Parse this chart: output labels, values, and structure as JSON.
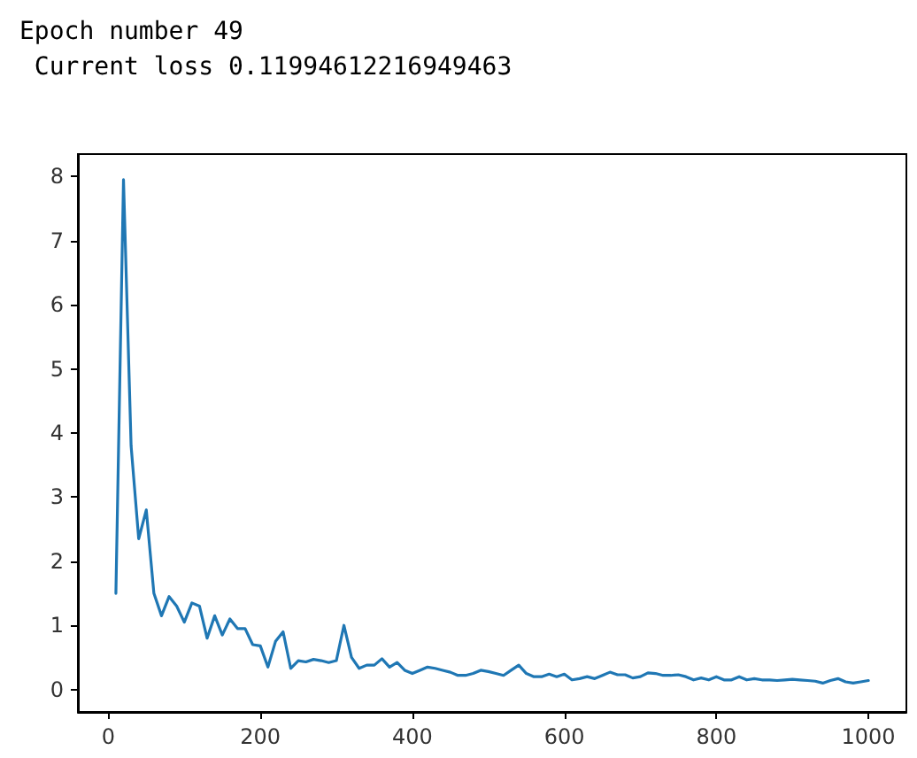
{
  "chart_data": {
    "type": "line",
    "title": "Epoch number 49",
    "subtitle": " Current loss 0.11994612216949463",
    "x": [
      10,
      20,
      30,
      40,
      50,
      60,
      70,
      80,
      90,
      100,
      110,
      120,
      130,
      140,
      150,
      160,
      170,
      180,
      190,
      200,
      210,
      220,
      230,
      240,
      250,
      260,
      270,
      280,
      290,
      300,
      310,
      320,
      330,
      340,
      350,
      360,
      370,
      380,
      390,
      400,
      410,
      420,
      430,
      440,
      450,
      460,
      470,
      480,
      490,
      500,
      510,
      520,
      530,
      540,
      550,
      560,
      570,
      580,
      590,
      600,
      610,
      620,
      630,
      640,
      650,
      660,
      670,
      680,
      690,
      700,
      710,
      720,
      730,
      740,
      750,
      760,
      770,
      780,
      790,
      800,
      810,
      820,
      830,
      840,
      850,
      860,
      870,
      880,
      890,
      900,
      910,
      920,
      930,
      940,
      950,
      960,
      970,
      980,
      990,
      1000
    ],
    "series": [
      {
        "color": "#1f77b4",
        "values": [
          1.5,
          7.95,
          3.8,
          2.35,
          2.8,
          1.5,
          1.15,
          1.45,
          1.3,
          1.05,
          1.35,
          1.3,
          0.8,
          1.15,
          0.85,
          1.1,
          0.95,
          0.95,
          0.7,
          0.68,
          0.35,
          0.75,
          0.9,
          0.33,
          0.45,
          0.43,
          0.47,
          0.45,
          0.42,
          0.45,
          1.0,
          0.5,
          0.33,
          0.38,
          0.38,
          0.48,
          0.35,
          0.42,
          0.3,
          0.25,
          0.3,
          0.35,
          0.33,
          0.3,
          0.27,
          0.22,
          0.22,
          0.25,
          0.3,
          0.28,
          0.25,
          0.22,
          0.3,
          0.38,
          0.25,
          0.2,
          0.2,
          0.24,
          0.2,
          0.24,
          0.15,
          0.17,
          0.2,
          0.17,
          0.22,
          0.27,
          0.23,
          0.23,
          0.18,
          0.2,
          0.26,
          0.25,
          0.22,
          0.22,
          0.23,
          0.2,
          0.15,
          0.18,
          0.15,
          0.2,
          0.15,
          0.15,
          0.2,
          0.15,
          0.17,
          0.15,
          0.15,
          0.14,
          0.15,
          0.16,
          0.15,
          0.14,
          0.13,
          0.1,
          0.14,
          0.17,
          0.12,
          0.1,
          0.12,
          0.14
        ]
      }
    ],
    "xlim": [
      -40,
      1050
    ],
    "ylim": [
      -0.35,
      8.35
    ],
    "xticks": [
      0,
      200,
      400,
      600,
      800,
      1000
    ],
    "yticks": [
      0,
      1,
      2,
      3,
      4,
      5,
      6,
      7,
      8
    ],
    "grid": false,
    "marker": "none",
    "line_style": "solid"
  }
}
